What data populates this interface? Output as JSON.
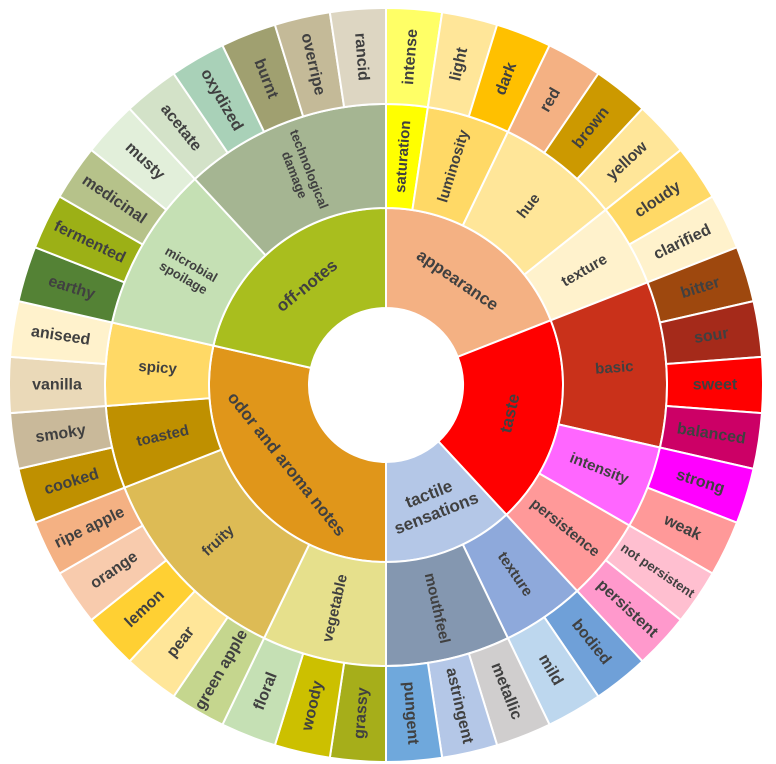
{
  "chart_data": {
    "type": "sunburst",
    "children": [
      {
        "label": "appearance",
        "color": "#F4B183",
        "children": [
          {
            "label": "saturation",
            "color": "#FFFF00",
            "children": [
              {
                "label": "intense",
                "color": "#FFFF66"
              }
            ]
          },
          {
            "label": "luminosity",
            "color": "#FFD966",
            "children": [
              {
                "label": "light",
                "color": "#FFE699"
              },
              {
                "label": "dark",
                "color": "#FFC000"
              }
            ]
          },
          {
            "label": "hue",
            "color": "#FFE699",
            "children": [
              {
                "label": "red",
                "color": "#F4B183"
              },
              {
                "label": "brown",
                "color": "#CC9900"
              },
              {
                "label": "yellow",
                "color": "#FFE699"
              }
            ]
          },
          {
            "label": "texture",
            "color": "#FFF2CC",
            "children": [
              {
                "label": "cloudy",
                "color": "#FFD966"
              },
              {
                "label": "clarified",
                "color": "#FFF2CC"
              }
            ]
          }
        ]
      },
      {
        "label": "taste",
        "color": "#FF0000",
        "children": [
          {
            "label": "basic",
            "color": "#C9311A",
            "children": [
              {
                "label": "bitter",
                "color": "#9E480E"
              },
              {
                "label": "sour",
                "color": "#A52A1A"
              },
              {
                "label": "sweet",
                "color": "#FF0000"
              },
              {
                "label": "balanced",
                "color": "#CC0066"
              }
            ]
          },
          {
            "label": "intensity",
            "color": "#FF66FF",
            "children": [
              {
                "label": "strong",
                "color": "#FF00FF"
              },
              {
                "label": "weak",
                "color": "#FF9999"
              }
            ]
          },
          {
            "label": "persistence",
            "color": "#FF9999",
            "children": [
              {
                "label": "not persistent",
                "color": "#FFBFD0"
              },
              {
                "label": "persistent",
                "color": "#FF99CC"
              }
            ]
          }
        ]
      },
      {
        "label": "tactile sensations",
        "color": "#B4C7E7",
        "children": [
          {
            "label": "texture",
            "color": "#8EA9DB",
            "children": [
              {
                "label": "bodied",
                "color": "#6FA0D8"
              },
              {
                "label": "mild",
                "color": "#BDD7EE"
              }
            ]
          },
          {
            "label": "mouthfeel",
            "color": "#8497B0",
            "children": [
              {
                "label": "metallic",
                "color": "#D0CECE"
              },
              {
                "label": "astringent",
                "color": "#B4C7E7"
              },
              {
                "label": "pungent",
                "color": "#6FA8DC"
              }
            ]
          }
        ]
      },
      {
        "label": "odor and aroma notes",
        "color": "#E0961A",
        "children": [
          {
            "label": "vegetable",
            "color": "#E6E08C",
            "children": [
              {
                "label": "grassy",
                "color": "#A6AE1A"
              },
              {
                "label": "woody",
                "color": "#CCC000"
              },
              {
                "label": "floral",
                "color": "#C5E0B4"
              }
            ]
          },
          {
            "label": "fruity",
            "color": "#DDBB55",
            "children": [
              {
                "label": "green apple",
                "color": "#C5D68E"
              },
              {
                "label": "pear",
                "color": "#FFE699"
              },
              {
                "label": "lemon",
                "color": "#FFD033"
              },
              {
                "label": "orange",
                "color": "#F8CBAD"
              },
              {
                "label": "ripe apple",
                "color": "#F4B183"
              }
            ]
          },
          {
            "label": "toasted",
            "color": "#BF9000",
            "children": [
              {
                "label": "cooked",
                "color": "#BF9000"
              },
              {
                "label": "smoky",
                "color": "#C9B99A"
              }
            ]
          },
          {
            "label": "spicy",
            "color": "#FFD966",
            "children": [
              {
                "label": "vanilla",
                "color": "#EAD9B8"
              },
              {
                "label": "aniseed",
                "color": "#FFF2CC"
              }
            ]
          }
        ]
      },
      {
        "label": "off-notes",
        "color": "#A9BE1E",
        "children": [
          {
            "label": "microbial spoilage",
            "color": "#C5E0B4",
            "children": [
              {
                "label": "earthy",
                "color": "#548235"
              },
              {
                "label": "fermented",
                "color": "#9CB016"
              },
              {
                "label": "medicinal",
                "color": "#B6C28A"
              },
              {
                "label": "musty",
                "color": "#E2EFDA"
              }
            ]
          },
          {
            "label": "technological damage",
            "color": "#A5B592",
            "children": [
              {
                "label": "acetate",
                "color": "#D3E2C8"
              },
              {
                "label": "oxydized",
                "color": "#A9D1B8"
              },
              {
                "label": "burnt",
                "color": "#A0A070"
              },
              {
                "label": "overripe",
                "color": "#C4BA98"
              },
              {
                "label": "rancid",
                "color": "#DDD6C2"
              }
            ]
          }
        ]
      }
    ]
  }
}
